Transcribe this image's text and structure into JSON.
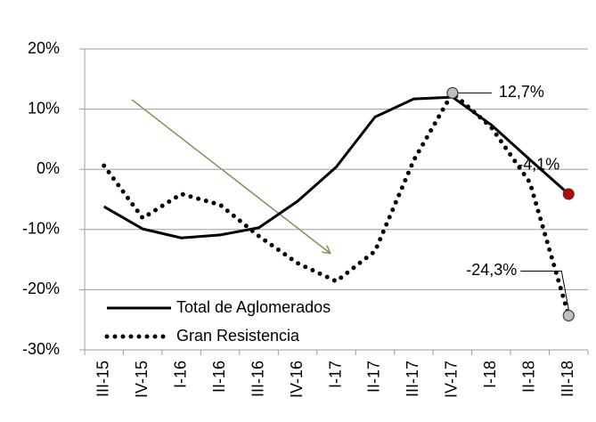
{
  "chart_data": {
    "type": "line",
    "categories": [
      "III-15",
      "IV-15",
      "I-16",
      "II-16",
      "III-16",
      "IV-16",
      "I-17",
      "II-17",
      "III-17",
      "IV-17",
      "I-18",
      "II-18",
      "III-18"
    ],
    "series": [
      {
        "name": "Total de Aglomerados",
        "color": "#000000",
        "line_style": "solid",
        "marker_color": "#c00000",
        "values": [
          -6.2,
          -9.9,
          -11.4,
          -10.9,
          -9.7,
          -5.3,
          0.4,
          8.7,
          11.7,
          12.0,
          7.4,
          1.6,
          -4.1
        ],
        "value_labels": [
          null,
          null,
          null,
          null,
          null,
          null,
          null,
          null,
          null,
          null,
          null,
          null,
          "-4,1%"
        ]
      },
      {
        "name": "Gran Resistencia",
        "color": "#000000",
        "line_style": "dotted",
        "marker_color": "#bfbfbf",
        "values": [
          0.6,
          -8.1,
          -4.1,
          -5.9,
          -11.1,
          -15.6,
          -18.6,
          -13.6,
          1.5,
          12.7,
          7.0,
          -2.2,
          -24.3
        ],
        "value_labels": [
          null,
          null,
          null,
          null,
          null,
          null,
          null,
          null,
          null,
          "12,7%",
          null,
          null,
          "-24,3%"
        ]
      }
    ],
    "ylim": [
      -30,
      20
    ],
    "yticks": [
      {
        "value": -30,
        "label": "-30%"
      },
      {
        "value": -20,
        "label": "-20%"
      },
      {
        "value": -10,
        "label": "-10%"
      },
      {
        "value": 0,
        "label": "0%"
      },
      {
        "value": 10,
        "label": "10%"
      },
      {
        "value": 20,
        "label": "20%"
      }
    ],
    "grid": true,
    "legend": "lower left"
  }
}
